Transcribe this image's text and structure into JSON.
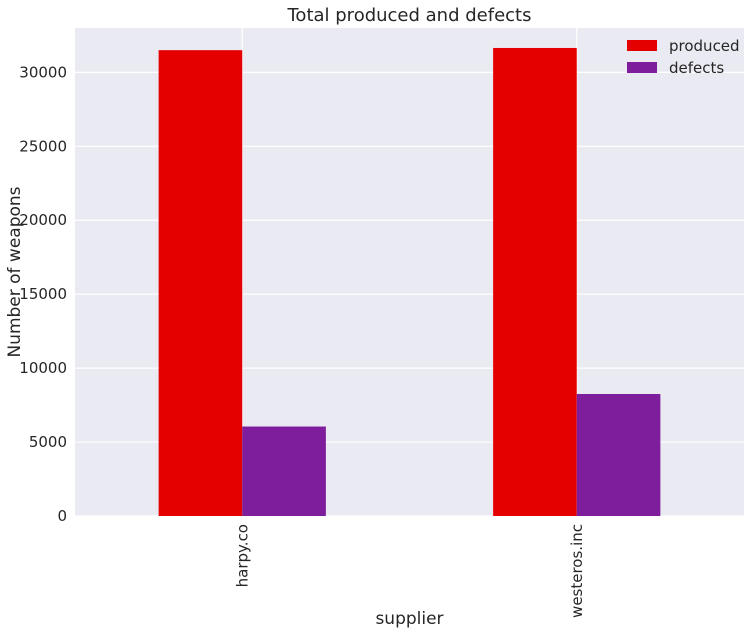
{
  "chart_data": {
    "type": "bar",
    "title": "Total produced and defects",
    "xlabel": "supplier",
    "ylabel": "Number of weapons",
    "categories": [
      "harpy.co",
      "westeros.inc"
    ],
    "series": [
      {
        "name": "produced",
        "values": [
          31500,
          31650
        ],
        "color": "#e50000"
      },
      {
        "name": "defects",
        "values": [
          6050,
          8250
        ],
        "color": "#7e1e9c"
      }
    ],
    "ylim": [
      0,
      33000
    ],
    "yticks": [
      0,
      5000,
      10000,
      15000,
      20000,
      25000,
      30000
    ],
    "grid": true,
    "legend_position": "top-right",
    "background_color": "#eaeaf2",
    "grid_color": "#ffffff"
  }
}
